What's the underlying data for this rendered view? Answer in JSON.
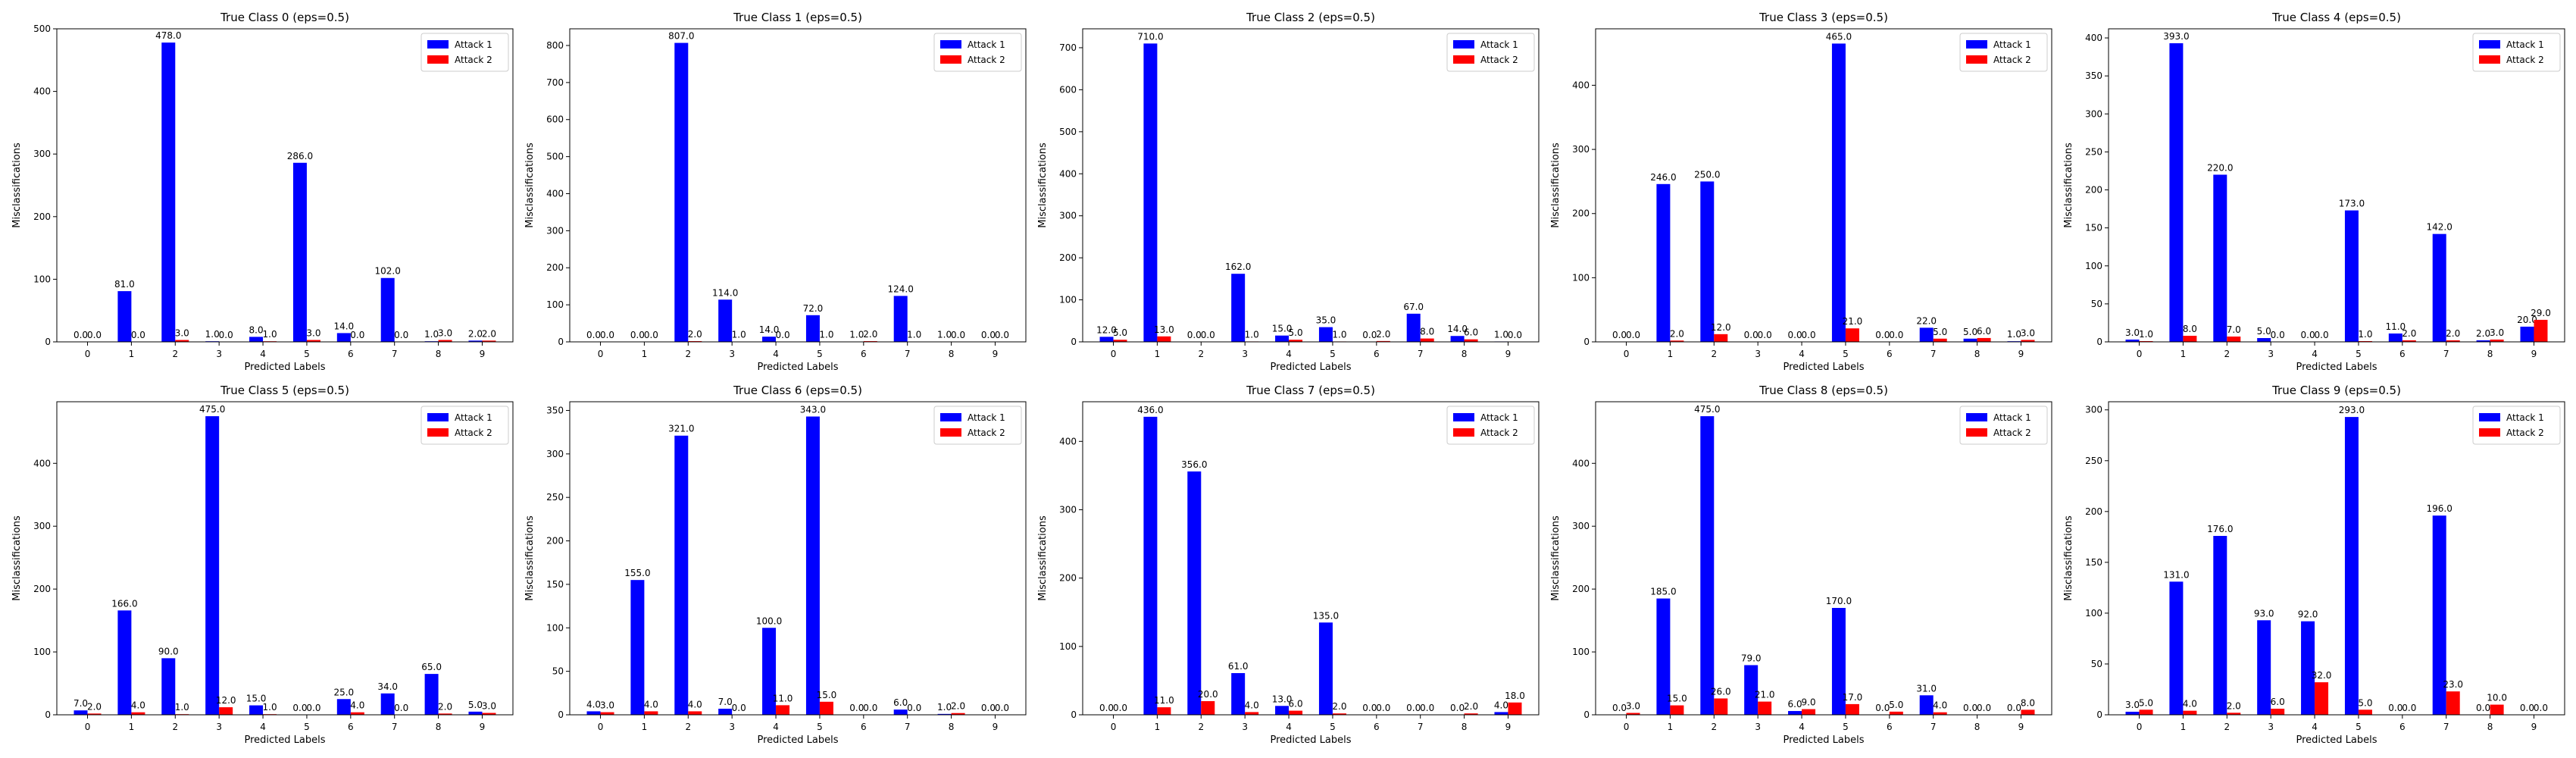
{
  "colors": {
    "series_1": "#0000ff",
    "series_2": "#ff0000",
    "axis": "#000000"
  },
  "chart_data": [
    {
      "type": "bar",
      "title": "True Class 0 (eps=0.5)",
      "xlabel": "Predicted Labels",
      "ylabel": "Misclassifications",
      "categories": [
        "0",
        "1",
        "2",
        "3",
        "4",
        "5",
        "6",
        "7",
        "8",
        "9"
      ],
      "series": [
        {
          "name": "Attack 1",
          "values": [
            0,
            81,
            478,
            1,
            8,
            286,
            14,
            102,
            1,
            2
          ]
        },
        {
          "name": "Attack 2",
          "values": [
            0,
            0,
            3,
            0,
            1,
            3,
            0,
            0,
            3,
            2
          ]
        }
      ],
      "ylim": [
        0,
        500
      ],
      "yticks": [
        0,
        100,
        200,
        300,
        400,
        500
      ],
      "legend": "top-right",
      "grid": false
    },
    {
      "type": "bar",
      "title": "True Class 1 (eps=0.5)",
      "xlabel": "Predicted Labels",
      "ylabel": "Misclassifications",
      "categories": [
        "0",
        "1",
        "2",
        "3",
        "4",
        "5",
        "6",
        "7",
        "8",
        "9"
      ],
      "series": [
        {
          "name": "Attack 1",
          "values": [
            0,
            0,
            807,
            114,
            14,
            72,
            1,
            124,
            1,
            0
          ]
        },
        {
          "name": "Attack 2",
          "values": [
            0,
            0,
            2,
            1,
            0,
            1,
            2,
            1,
            0,
            0
          ]
        }
      ],
      "ylim": [
        0,
        845
      ],
      "yticks": [
        0,
        100,
        200,
        300,
        400,
        500,
        600,
        700,
        800
      ],
      "legend": "top-right",
      "grid": false
    },
    {
      "type": "bar",
      "title": "True Class 2 (eps=0.5)",
      "xlabel": "Predicted Labels",
      "ylabel": "Misclassifications",
      "categories": [
        "0",
        "1",
        "2",
        "3",
        "4",
        "5",
        "6",
        "7",
        "8",
        "9"
      ],
      "series": [
        {
          "name": "Attack 1",
          "values": [
            12,
            710,
            0,
            162,
            15,
            35,
            0,
            67,
            14,
            1
          ]
        },
        {
          "name": "Attack 2",
          "values": [
            5,
            13,
            0,
            1,
            5,
            1,
            2,
            8,
            6,
            0
          ]
        }
      ],
      "ylim": [
        0,
        745
      ],
      "yticks": [
        0,
        100,
        200,
        300,
        400,
        500,
        600,
        700
      ],
      "legend": "top-right",
      "grid": false
    },
    {
      "type": "bar",
      "title": "True Class 3 (eps=0.5)",
      "xlabel": "Predicted Labels",
      "ylabel": "Misclassifications",
      "categories": [
        "0",
        "1",
        "2",
        "3",
        "4",
        "5",
        "6",
        "7",
        "8",
        "9"
      ],
      "series": [
        {
          "name": "Attack 1",
          "values": [
            0,
            246,
            250,
            0,
            0,
            465,
            0,
            22,
            5,
            1
          ]
        },
        {
          "name": "Attack 2",
          "values": [
            0,
            2,
            12,
            0,
            0,
            21,
            0,
            5,
            6,
            3
          ]
        }
      ],
      "ylim": [
        0,
        488
      ],
      "yticks": [
        0,
        100,
        200,
        300,
        400
      ],
      "legend": "top-right",
      "grid": false
    },
    {
      "type": "bar",
      "title": "True Class 4 (eps=0.5)",
      "xlabel": "Predicted Labels",
      "ylabel": "Misclassifications",
      "categories": [
        "0",
        "1",
        "2",
        "3",
        "4",
        "5",
        "6",
        "7",
        "8",
        "9"
      ],
      "series": [
        {
          "name": "Attack 1",
          "values": [
            3,
            393,
            220,
            5,
            0,
            173,
            11,
            142,
            2,
            20
          ]
        },
        {
          "name": "Attack 2",
          "values": [
            1,
            8,
            7,
            0,
            0,
            1,
            2,
            2,
            3,
            29
          ]
        }
      ],
      "ylim": [
        0,
        412
      ],
      "yticks": [
        0,
        50,
        100,
        150,
        200,
        250,
        300,
        350,
        400
      ],
      "legend": "top-right",
      "grid": false
    },
    {
      "type": "bar",
      "title": "True Class 5 (eps=0.5)",
      "xlabel": "Predicted Labels",
      "ylabel": "Misclassifications",
      "categories": [
        "0",
        "1",
        "2",
        "3",
        "4",
        "5",
        "6",
        "7",
        "8",
        "9"
      ],
      "series": [
        {
          "name": "Attack 1",
          "values": [
            7,
            166,
            90,
            475,
            15,
            0,
            25,
            34,
            65,
            5
          ]
        },
        {
          "name": "Attack 2",
          "values": [
            2,
            4,
            1,
            12,
            1,
            0,
            4,
            0,
            2,
            3
          ]
        }
      ],
      "ylim": [
        0,
        498
      ],
      "yticks": [
        0,
        100,
        200,
        300,
        400
      ],
      "legend": "top-right",
      "grid": false
    },
    {
      "type": "bar",
      "title": "True Class 6 (eps=0.5)",
      "xlabel": "Predicted Labels",
      "ylabel": "Misclassifications",
      "categories": [
        "0",
        "1",
        "2",
        "3",
        "4",
        "5",
        "6",
        "7",
        "8",
        "9"
      ],
      "series": [
        {
          "name": "Attack 1",
          "values": [
            4,
            155,
            321,
            7,
            100,
            343,
            0,
            6,
            1,
            0
          ]
        },
        {
          "name": "Attack 2",
          "values": [
            3,
            4,
            4,
            0,
            11,
            15,
            0,
            0,
            2,
            0
          ]
        }
      ],
      "ylim": [
        0,
        360
      ],
      "yticks": [
        0,
        50,
        100,
        150,
        200,
        250,
        300,
        350
      ],
      "legend": "top-right",
      "grid": false
    },
    {
      "type": "bar",
      "title": "True Class 7 (eps=0.5)",
      "xlabel": "Predicted Labels",
      "ylabel": "Misclassifications",
      "categories": [
        "0",
        "1",
        "2",
        "3",
        "4",
        "5",
        "6",
        "7",
        "8",
        "9"
      ],
      "series": [
        {
          "name": "Attack 1",
          "values": [
            0,
            436,
            356,
            61,
            13,
            135,
            0,
            0,
            0,
            4
          ]
        },
        {
          "name": "Attack 2",
          "values": [
            0,
            11,
            20,
            4,
            6,
            2,
            0,
            0,
            2,
            18
          ]
        }
      ],
      "ylim": [
        0,
        458
      ],
      "yticks": [
        0,
        100,
        200,
        300,
        400
      ],
      "legend": "top-right",
      "grid": false
    },
    {
      "type": "bar",
      "title": "True Class 8 (eps=0.5)",
      "xlabel": "Predicted Labels",
      "ylabel": "Misclassifications",
      "categories": [
        "0",
        "1",
        "2",
        "3",
        "4",
        "5",
        "6",
        "7",
        "8",
        "9"
      ],
      "series": [
        {
          "name": "Attack 1",
          "values": [
            0,
            185,
            475,
            79,
            6,
            170,
            0,
            31,
            0,
            0
          ]
        },
        {
          "name": "Attack 2",
          "values": [
            3,
            15,
            26,
            21,
            9,
            17,
            5,
            4,
            0,
            8
          ]
        }
      ],
      "ylim": [
        0,
        498
      ],
      "yticks": [
        0,
        100,
        200,
        300,
        400
      ],
      "legend": "top-right",
      "grid": false
    },
    {
      "type": "bar",
      "title": "True Class 9 (eps=0.5)",
      "xlabel": "Predicted Labels",
      "ylabel": "Misclassifications",
      "categories": [
        "0",
        "1",
        "2",
        "3",
        "4",
        "5",
        "6",
        "7",
        "8",
        "9"
      ],
      "series": [
        {
          "name": "Attack 1",
          "values": [
            3,
            131,
            176,
            93,
            92,
            293,
            0,
            196,
            0,
            0
          ]
        },
        {
          "name": "Attack 2",
          "values": [
            5,
            4,
            2,
            6,
            32,
            5,
            0,
            23,
            10,
            0
          ]
        }
      ],
      "ylim": [
        0,
        308
      ],
      "yticks": [
        0,
        50,
        100,
        150,
        200,
        250,
        300
      ],
      "legend": "top-right",
      "grid": false
    }
  ]
}
